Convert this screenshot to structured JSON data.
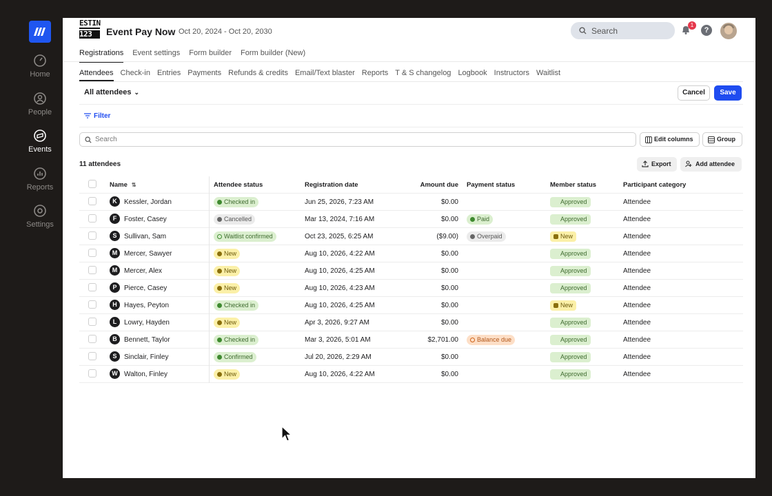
{
  "sidebar": {
    "items": [
      {
        "label": "Home",
        "icon": "gauge-icon",
        "active": false
      },
      {
        "label": "People",
        "icon": "person-icon",
        "active": false
      },
      {
        "label": "Events",
        "icon": "ticket-icon",
        "active": true
      },
      {
        "label": "Reports",
        "icon": "chart-icon",
        "active": false
      },
      {
        "label": "Settings",
        "icon": "gear-icon",
        "active": false
      }
    ]
  },
  "header": {
    "logo_line1": "ESTIN",
    "logo_line2": "123",
    "title": "Event Pay Now",
    "dates": "Oct 20, 2024 - Oct 20, 2030",
    "search_placeholder": "Search",
    "notification_count": "1",
    "help": "?"
  },
  "primary_tabs": [
    "Registrations",
    "Event settings",
    "Form builder",
    "Form builder (New)"
  ],
  "secondary_tabs": [
    "Attendees",
    "Check-in",
    "Entries",
    "Payments",
    "Refunds & credits",
    "Email/Text blaster",
    "Reports",
    "T & S changelog",
    "Logbook",
    "Instructors",
    "Waitlist"
  ],
  "toolbar": {
    "view_select": "All attendees",
    "cancel_label": "Cancel",
    "save_label": "Save",
    "filter_label": "Filter",
    "search_placeholder": "Search",
    "edit_columns_label": "Edit columns",
    "group_label": "Group",
    "count_label": "11 attendees",
    "export_label": "Export",
    "add_attendee_label": "Add attendee"
  },
  "table": {
    "columns": [
      "Name",
      "Attendee status",
      "Registration date",
      "Amount due",
      "Payment status",
      "Member status",
      "Participant category"
    ],
    "rows": [
      {
        "initial": "K",
        "name": "Kessler, Jordan",
        "status": "Checked in",
        "status_style": "green chk",
        "date": "Jun 25, 2026, 7:23 AM",
        "amount": "$0.00",
        "payment": "",
        "payment_style": "",
        "member": "Approved",
        "member_style": "green",
        "category": "Attendee"
      },
      {
        "initial": "F",
        "name": "Foster, Casey",
        "status": "Cancelled",
        "status_style": "grey",
        "date": "Mar 13, 2024, 7:16 AM",
        "amount": "$0.00",
        "payment": "Paid",
        "payment_style": "green dot",
        "member": "Approved",
        "member_style": "green",
        "category": "Attendee"
      },
      {
        "initial": "S",
        "name": "Sullivan, Sam",
        "status": "Waitlist confirmed",
        "status_style": "green ring",
        "date": "Oct 23, 2025, 6:25 AM",
        "amount": "($9.00)",
        "payment": "Overpaid",
        "payment_style": "grey",
        "member": "New",
        "member_style": "yellow",
        "category": "Attendee"
      },
      {
        "initial": "M",
        "name": "Mercer, Sawyer",
        "status": "New",
        "status_style": "yellow",
        "date": "Aug 10, 2026, 4:22 AM",
        "amount": "$0.00",
        "payment": "",
        "payment_style": "",
        "member": "Approved",
        "member_style": "green",
        "category": "Attendee"
      },
      {
        "initial": "M",
        "name": "Mercer, Alex",
        "status": "New",
        "status_style": "yellow",
        "date": "Aug 10, 2026, 4:25 AM",
        "amount": "$0.00",
        "payment": "",
        "payment_style": "",
        "member": "Approved",
        "member_style": "green",
        "category": "Attendee"
      },
      {
        "initial": "P",
        "name": "Pierce, Casey",
        "status": "New",
        "status_style": "yellow",
        "date": "Aug 10, 2026, 4:23 AM",
        "amount": "$0.00",
        "payment": "",
        "payment_style": "",
        "member": "Approved",
        "member_style": "green",
        "category": "Attendee"
      },
      {
        "initial": "H",
        "name": "Hayes, Peyton",
        "status": "Checked in",
        "status_style": "green chk",
        "date": "Aug 10, 2026, 4:25 AM",
        "amount": "$0.00",
        "payment": "",
        "payment_style": "",
        "member": "New",
        "member_style": "yellow",
        "category": "Attendee"
      },
      {
        "initial": "L",
        "name": "Lowry, Hayden",
        "status": "New",
        "status_style": "yellow",
        "date": "Apr 3, 2026, 9:27 AM",
        "amount": "$0.00",
        "payment": "",
        "payment_style": "",
        "member": "Approved",
        "member_style": "green",
        "category": "Attendee"
      },
      {
        "initial": "B",
        "name": "Bennett, Taylor",
        "status": "Checked in",
        "status_style": "green chk",
        "date": "Mar 3, 2026, 5:01 AM",
        "amount": "$2,701.00",
        "payment": "Balance due",
        "payment_style": "orange",
        "member": "Approved",
        "member_style": "green",
        "category": "Attendee"
      },
      {
        "initial": "S",
        "name": "Sinclair, Finley",
        "status": "Confirmed",
        "status_style": "green dot",
        "date": "Jul 20, 2026, 2:29 AM",
        "amount": "$0.00",
        "payment": "",
        "payment_style": "",
        "member": "Approved",
        "member_style": "green",
        "category": "Attendee"
      },
      {
        "initial": "W",
        "name": "Walton, Finley",
        "status": "New",
        "status_style": "yellow",
        "date": "Aug 10, 2026, 4:22 AM",
        "amount": "$0.00",
        "payment": "",
        "payment_style": "",
        "member": "Approved",
        "member_style": "green",
        "category": "Attendee"
      }
    ]
  },
  "colors": {
    "brand": "#1f56f0",
    "save_button": "#1f4cf0",
    "sidebar_bg": "#1e1b19"
  }
}
